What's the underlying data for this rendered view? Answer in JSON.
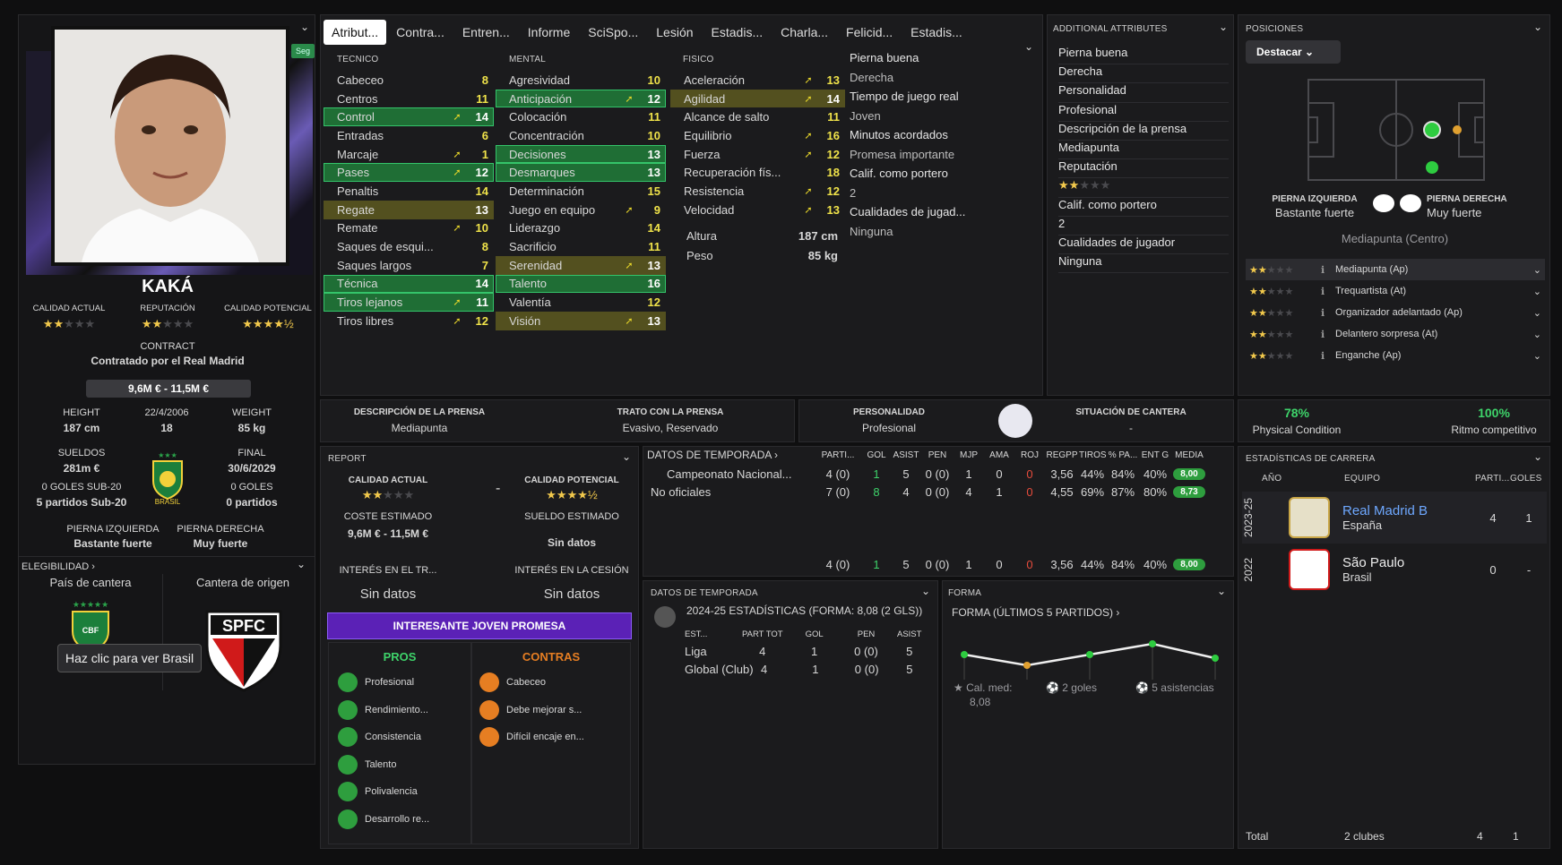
{
  "player": {
    "name": "KAKÁ",
    "seg": "Seg",
    "contract_label": "CONTRACT",
    "contract_text": "Contratado por el Real Madrid",
    "value": "9,6M € - 11,5M €",
    "ca_label": "CALIDAD ACTUAL",
    "rep_label": "REPUTACIÓN",
    "pa_label": "CALIDAD POTENCIAL",
    "height_label": "HEIGHT",
    "height": "187 cm",
    "dob": "22/4/2006",
    "age": "18",
    "weight_label": "WEIGHT",
    "weight": "85 kg",
    "wages_label": "SUELDOS",
    "wages": "281m €",
    "final_label": "FINAL",
    "final": "30/6/2029",
    "u20_goals": "0 GOLES SUB-20",
    "u20_apps": "5 partidos Sub-20",
    "goals": "0 GOLES",
    "apps": "0 partidos",
    "left_foot_label": "PIERNA IZQUIERDA",
    "left_foot": "Bastante fuerte",
    "right_foot_label": "PIERNA DERECHA",
    "right_foot": "Muy fuerte",
    "brasil": "BRASIL",
    "elig_label": "ELEGIBILIDAD",
    "youth_country_label": "País de cantera",
    "origin_label": "Cantera de origen",
    "tooltip": "Haz clic para ver Brasil",
    "cbf": "CBF",
    "spfc": "SPFC"
  },
  "tabs": [
    "Atribut...",
    "Contra...",
    "Entren...",
    "Informe",
    "SciSpo...",
    "Lesión",
    "Estadis...",
    "Charla...",
    "Felicid...",
    "Estadis..."
  ],
  "attr": {
    "tec_label": "TECNICO",
    "men_label": "MENTAL",
    "fis_label": "FISICO",
    "tecnico": [
      {
        "n": "Cabeceo",
        "v": "8",
        "a": false,
        "h": ""
      },
      {
        "n": "Centros",
        "v": "11",
        "a": false,
        "h": ""
      },
      {
        "n": "Control",
        "v": "14",
        "a": true,
        "h": "g"
      },
      {
        "n": "Entradas",
        "v": "6",
        "a": false,
        "h": ""
      },
      {
        "n": "Marcaje",
        "v": "1",
        "a": true,
        "h": ""
      },
      {
        "n": "Pases",
        "v": "12",
        "a": true,
        "h": "g"
      },
      {
        "n": "Penaltis",
        "v": "14",
        "a": false,
        "h": ""
      },
      {
        "n": "Regate",
        "v": "13",
        "a": false,
        "h": "o"
      },
      {
        "n": "Remate",
        "v": "10",
        "a": true,
        "h": ""
      },
      {
        "n": "Saques de esqui...",
        "v": "8",
        "a": false,
        "h": ""
      },
      {
        "n": "Saques largos",
        "v": "7",
        "a": false,
        "h": ""
      },
      {
        "n": "Técnica",
        "v": "14",
        "a": false,
        "h": "g"
      },
      {
        "n": "Tiros lejanos",
        "v": "11",
        "a": true,
        "h": "g"
      },
      {
        "n": "Tiros libres",
        "v": "12",
        "a": true,
        "h": ""
      }
    ],
    "mental": [
      {
        "n": "Agresividad",
        "v": "10",
        "a": false,
        "h": ""
      },
      {
        "n": "Anticipación",
        "v": "12",
        "a": true,
        "h": "g"
      },
      {
        "n": "Colocación",
        "v": "11",
        "a": false,
        "h": ""
      },
      {
        "n": "Concentración",
        "v": "10",
        "a": false,
        "h": ""
      },
      {
        "n": "Decisiones",
        "v": "13",
        "a": false,
        "h": "g"
      },
      {
        "n": "Desmarques",
        "v": "13",
        "a": false,
        "h": "g"
      },
      {
        "n": "Determinación",
        "v": "15",
        "a": false,
        "h": ""
      },
      {
        "n": "Juego en equipo",
        "v": "9",
        "a": true,
        "h": ""
      },
      {
        "n": "Liderazgo",
        "v": "14",
        "a": false,
        "h": ""
      },
      {
        "n": "Sacrificio",
        "v": "11",
        "a": false,
        "h": ""
      },
      {
        "n": "Serenidad",
        "v": "13",
        "a": true,
        "h": "o"
      },
      {
        "n": "Talento",
        "v": "16",
        "a": false,
        "h": "g"
      },
      {
        "n": "Valentía",
        "v": "12",
        "a": false,
        "h": ""
      },
      {
        "n": "Visión",
        "v": "13",
        "a": true,
        "h": "o"
      }
    ],
    "fisico": [
      {
        "n": "Aceleración",
        "v": "13",
        "a": true,
        "h": ""
      },
      {
        "n": "Agilidad",
        "v": "14",
        "a": true,
        "h": "o"
      },
      {
        "n": "Alcance de salto",
        "v": "11",
        "a": false,
        "h": ""
      },
      {
        "n": "Equilibrio",
        "v": "16",
        "a": true,
        "h": ""
      },
      {
        "n": "Fuerza",
        "v": "12",
        "a": true,
        "h": ""
      },
      {
        "n": "Recuperación fís...",
        "v": "18",
        "a": false,
        "h": ""
      },
      {
        "n": "Resistencia",
        "v": "12",
        "a": true,
        "h": ""
      },
      {
        "n": "Velocidad",
        "v": "13",
        "a": true,
        "h": ""
      }
    ],
    "altura_label": "Altura",
    "altura": "187 cm",
    "peso_label": "Peso",
    "peso": "85 kg",
    "side": [
      "Pierna buena",
      "Derecha",
      "Tiempo de juego real",
      "Joven",
      "Minutos acordados",
      "Promesa importante",
      "Calif. como portero",
      "2",
      "Cualidades de jugad...",
      "Ninguna"
    ]
  },
  "additional": {
    "title": "ADDITIONAL ATTRIBUTES",
    "items": [
      "Pierna buena",
      "Derecha",
      "Personalidad",
      "Profesional",
      "Descripción de la prensa",
      "Mediapunta",
      "Reputación",
      "",
      "Calif. como portero",
      "2",
      "Cualidades de jugador",
      "Ninguna"
    ]
  },
  "positions": {
    "title": "POSICIONES",
    "button": "Destacar",
    "left_label": "PIERNA IZQUIERDA",
    "left_val": "Bastante fuerte",
    "right_label": "PIERNA DERECHA",
    "right_val": "Muy fuerte",
    "pos": "Mediapunta (Centro)",
    "roles": [
      {
        "stars": 2,
        "name": "Mediapunta (Ap)"
      },
      {
        "stars": 2,
        "name": "Trequartista (At)"
      },
      {
        "stars": 2,
        "name": "Organizador adelantado (Ap)"
      },
      {
        "stars": 2,
        "name": "Delantero sorpresa (At)"
      },
      {
        "stars": 2,
        "name": "Enganche (Ap)"
      }
    ]
  },
  "press": {
    "desc_label": "DESCRIPCIÓN DE LA PRENSA",
    "desc": "Mediapunta",
    "trato_label": "TRATO CON LA PRENSA",
    "trato": "Evasivo, Reservado",
    "pers_label": "PERSONALIDAD",
    "pers": "Profesional",
    "cantera_label": "SITUACIÓN DE CANTERA",
    "cantera": "-"
  },
  "condition": {
    "pc": "78%",
    "pc_label": "Physical Condition",
    "rc": "100%",
    "rc_label": "Ritmo competitivo"
  },
  "report": {
    "title": "REPORT",
    "ca": "CALIDAD ACTUAL",
    "pa": "CALIDAD POTENCIAL",
    "dash": "-",
    "coste_label": "COSTE ESTIMADO",
    "coste": "9,6M € - 11,5M €",
    "sueldo_label": "SUELDO ESTIMADO",
    "sueldo": "Sin datos",
    "interes_tr": "INTERÉS EN EL TR...",
    "interes_tr_v": "Sin datos",
    "interes_ce": "INTERÉS EN LA CESIÓN",
    "interes_ce_v": "Sin datos",
    "banner": "INTERESANTE JOVEN PROMESA",
    "pros_label": "PROS",
    "contras_label": "CONTRAS",
    "pros": [
      "Profesional",
      "Rendimiento...",
      "Consistencia",
      "Talento",
      "Polivalencia",
      "Desarrollo re..."
    ],
    "contras": [
      "Cabeceo",
      "Debe mejorar s...",
      "Difícil encaje en..."
    ]
  },
  "season": {
    "title": "DATOS DE TEMPORADA",
    "cols": [
      "PARTI...",
      "GOL",
      "ASIST",
      "PEN",
      "MJP",
      "AMA",
      "ROJ",
      "REGPP",
      "TIROS",
      "% PA...",
      "ENT G",
      "MEDIA"
    ],
    "rows": [
      {
        "name": "Campeonato Nacional...",
        "v": [
          "4 (0)",
          "1",
          "5",
          "0 (0)",
          "1",
          "0",
          "0",
          "3,56",
          "44%",
          "84%",
          "40%",
          "8,00"
        ]
      },
      {
        "name": "No oficiales",
        "v": [
          "7 (0)",
          "8",
          "4",
          "0 (0)",
          "4",
          "1",
          "0",
          "4,55",
          "69%",
          "87%",
          "80%",
          "8,73"
        ]
      }
    ],
    "total": [
      "4 (0)",
      "1",
      "5",
      "0 (0)",
      "1",
      "0",
      "0",
      "3,56",
      "44%",
      "84%",
      "40%",
      "8,00"
    ]
  },
  "season2": {
    "title": "DATOS DE TEMPORADA",
    "sub": "2024-25 ESTADÍSTICAS (FORMA: 8,08 (2 GLS))",
    "cols": [
      "EST...",
      "PART TOT",
      "GOL",
      "PEN",
      "ASIST"
    ],
    "rows": [
      [
        "Liga",
        "4",
        "1",
        "0 (0)",
        "5"
      ],
      [
        "Global (Club)",
        "4",
        "1",
        "0 (0)",
        "5"
      ]
    ]
  },
  "forma": {
    "title": "FORMA",
    "sub": "FORMA (ÚLTIMOS 5 PARTIDOS)",
    "values": [
      7.6,
      7.3,
      7.6,
      7.9,
      7.5
    ],
    "cal_label": "Cal. med:",
    "cal": "8,08",
    "goals": "2 goles",
    "assists": "5 asistencias"
  },
  "career": {
    "title": "ESTADÍSTICAS DE CARRERA",
    "cols": [
      "AÑO",
      "EQUIPO",
      "PARTI...",
      "GOLES"
    ],
    "rows": [
      {
        "year": "2023-25",
        "team": "Real Madrid B",
        "country": "España",
        "apps": "4",
        "goals": "1"
      },
      {
        "year": "2022",
        "team": "São Paulo",
        "country": "Brasil",
        "apps": "0",
        "goals": "-"
      }
    ],
    "total_label": "Total",
    "total_clubs": "2 clubes",
    "total_apps": "4",
    "total_goals": "1"
  },
  "colors": {
    "green": "#2e9e3e",
    "accent": "#7b2fc9",
    "yellow": "#e6d52a"
  }
}
